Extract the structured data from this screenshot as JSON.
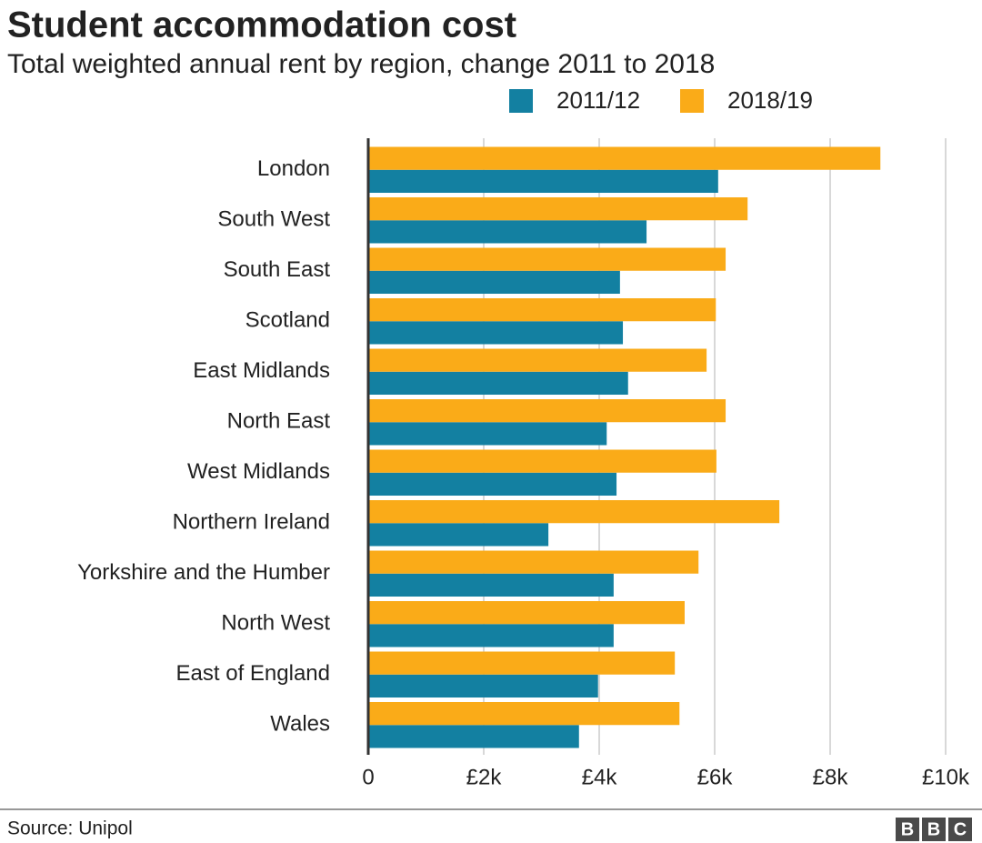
{
  "chart_data": {
    "type": "bar",
    "orientation": "horizontal",
    "title": "Student accommodation cost",
    "subtitle": "Total weighted annual rent by region, change 2011 to 2018",
    "categories": [
      "London",
      "South West",
      "South East",
      "Scotland",
      "East Midlands",
      "North East",
      "West Midlands",
      "Northern Ireland",
      "Yorkshire and the Humber",
      "North West",
      "East of England",
      "Wales"
    ],
    "series": [
      {
        "name": "2011/12",
        "color": "#1380a1",
        "values": [
          6060,
          4820,
          4360,
          4410,
          4500,
          4130,
          4300,
          3120,
          4250,
          4250,
          3980,
          3650
        ]
      },
      {
        "name": "2018/19",
        "color": "#faab18",
        "values": [
          8870,
          6570,
          6190,
          6020,
          5860,
          6190,
          6030,
          7120,
          5720,
          5480,
          5310,
          5390
        ]
      }
    ],
    "xlim": [
      0,
      10000
    ],
    "xticks": [
      0,
      {
        "value": 2000,
        "label": "£2k"
      },
      {
        "value": 4000,
        "label": "£4k"
      },
      {
        "value": 6000,
        "label": "£6k"
      },
      {
        "value": 8000,
        "label": "£8k"
      },
      {
        "value": 10000,
        "label": "£10k"
      }
    ],
    "grid": true,
    "source": "Source: Unipol",
    "logo": [
      "B",
      "B",
      "C"
    ]
  }
}
